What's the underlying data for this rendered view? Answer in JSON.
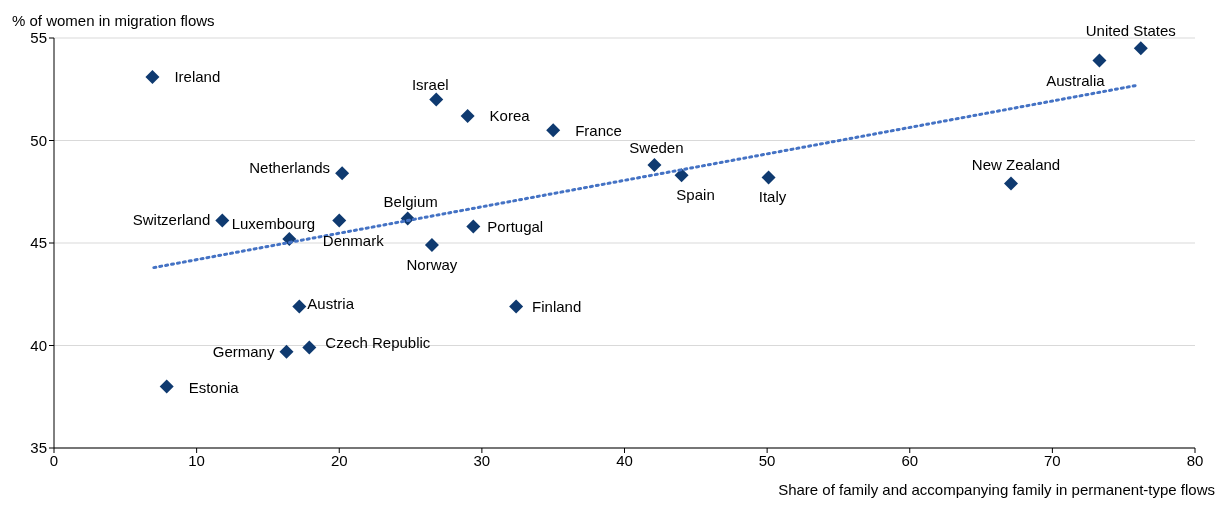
{
  "chart_data": {
    "type": "scatter",
    "ylabel": "% of women in migration flows",
    "xlabel": "Share of family and accompanying family in permanent-type flows",
    "xlim": [
      0,
      80
    ],
    "xticks": [
      0,
      10,
      20,
      30,
      40,
      50,
      60,
      70,
      80
    ],
    "ylim": [
      35,
      55
    ],
    "yticks": [
      35,
      40,
      45,
      50,
      55
    ],
    "grid": "y",
    "legend": false,
    "series": [
      {
        "marker": "diamond",
        "color": "#0f3a70",
        "x": [
          6.9,
          7.9,
          11.8,
          16.5,
          16.3,
          17.2,
          17.9,
          20.0,
          20.2,
          24.8,
          26.5,
          26.8,
          29.0,
          29.4,
          32.4,
          35.0,
          42.1,
          44.0,
          50.1,
          67.1,
          73.3,
          76.2
        ],
        "values": [
          53.1,
          38.0,
          46.1,
          45.2,
          39.7,
          41.9,
          39.9,
          46.1,
          48.4,
          46.2,
          44.9,
          52.0,
          51.2,
          45.8,
          41.9,
          50.5,
          48.8,
          48.3,
          48.2,
          47.9,
          53.9,
          54.5
        ]
      },
      {
        "type": "line",
        "marker": "none",
        "color": "#4472c4",
        "line_style": "dotted",
        "x": [
          7,
          76
        ],
        "values": [
          43.8,
          52.7
        ]
      }
    ],
    "annotations": [
      {
        "text": "Ireland",
        "x": 6.9,
        "y": 53.1
      },
      {
        "text": "Estonia",
        "x": 7.9,
        "y": 38.0
      },
      {
        "text": "Switzerland",
        "x": 11.8,
        "y": 46.1
      },
      {
        "text": "Luxembourg",
        "x": 16.5,
        "y": 45.2
      },
      {
        "text": "Germany",
        "x": 16.3,
        "y": 39.7
      },
      {
        "text": "Austria",
        "x": 17.2,
        "y": 41.9
      },
      {
        "text": "Czech Republic",
        "x": 17.9,
        "y": 39.9
      },
      {
        "text": "Denmark",
        "x": 20.0,
        "y": 46.1
      },
      {
        "text": "Netherlands",
        "x": 20.2,
        "y": 48.4
      },
      {
        "text": "Belgium",
        "x": 24.8,
        "y": 46.2
      },
      {
        "text": "Norway",
        "x": 26.5,
        "y": 44.9
      },
      {
        "text": "Israel",
        "x": 26.8,
        "y": 52.0
      },
      {
        "text": "Korea",
        "x": 29.0,
        "y": 51.2
      },
      {
        "text": "Portugal",
        "x": 29.4,
        "y": 45.8
      },
      {
        "text": "Finland",
        "x": 32.4,
        "y": 41.9
      },
      {
        "text": "France",
        "x": 35.0,
        "y": 50.5
      },
      {
        "text": "Sweden",
        "x": 42.1,
        "y": 48.8
      },
      {
        "text": "Spain",
        "x": 44.0,
        "y": 48.3
      },
      {
        "text": "Italy",
        "x": 50.1,
        "y": 48.2
      },
      {
        "text": "New Zealand",
        "x": 67.1,
        "y": 47.9
      },
      {
        "text": "Australia",
        "x": 73.3,
        "y": 53.9
      },
      {
        "text": "United States",
        "x": 76.2,
        "y": 54.5
      }
    ]
  }
}
